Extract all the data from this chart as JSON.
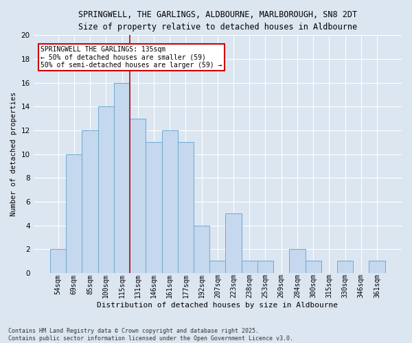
{
  "title_line1": "SPRINGWELL, THE GARLINGS, ALDBOURNE, MARLBOROUGH, SN8 2DT",
  "title_line2": "Size of property relative to detached houses in Aldbourne",
  "xlabel": "Distribution of detached houses by size in Aldbourne",
  "ylabel": "Number of detached properties",
  "categories": [
    "54sqm",
    "69sqm",
    "85sqm",
    "100sqm",
    "115sqm",
    "131sqm",
    "146sqm",
    "161sqm",
    "177sqm",
    "192sqm",
    "207sqm",
    "223sqm",
    "238sqm",
    "253sqm",
    "269sqm",
    "284sqm",
    "300sqm",
    "315sqm",
    "330sqm",
    "346sqm",
    "361sqm"
  ],
  "values": [
    2,
    10,
    12,
    14,
    16,
    13,
    11,
    12,
    11,
    4,
    1,
    5,
    1,
    1,
    0,
    2,
    1,
    0,
    1,
    0,
    1
  ],
  "bar_color": "#c5d8ee",
  "bar_edge_color": "#6aaad4",
  "vline_index": 5,
  "vline_color": "#cc0000",
  "annotation_title": "SPRINGWELL THE GARLINGS: 135sqm",
  "annotation_line1": "← 50% of detached houses are smaller (59)",
  "annotation_line2": "50% of semi-detached houses are larger (59) →",
  "annotation_box_facecolor": "#ffffff",
  "annotation_box_edgecolor": "#cc0000",
  "ylim": [
    0,
    20
  ],
  "yticks": [
    0,
    2,
    4,
    6,
    8,
    10,
    12,
    14,
    16,
    18,
    20
  ],
  "background_color": "#dce6f1",
  "grid_color": "#ffffff",
  "footer": "Contains HM Land Registry data © Crown copyright and database right 2025.\nContains public sector information licensed under the Open Government Licence v3.0."
}
